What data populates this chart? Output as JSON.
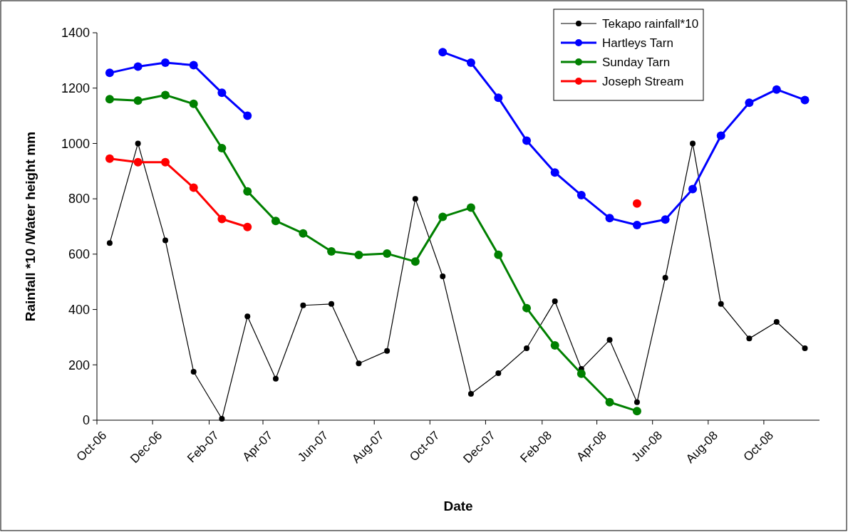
{
  "chart_data": {
    "type": "line",
    "xlabel": "Date",
    "ylabel": "Rainfall *10 /Water height mm",
    "x": [
      "2006-10-15",
      "2006-11-15",
      "2006-12-15",
      "2007-01-15",
      "2007-02-15",
      "2007-03-15",
      "2007-04-15",
      "2007-05-15",
      "2007-06-15",
      "2007-07-15",
      "2007-08-15",
      "2007-09-15",
      "2007-10-15",
      "2007-11-15",
      "2007-12-15",
      "2008-01-15",
      "2008-02-15",
      "2008-03-15",
      "2008-04-15",
      "2008-05-15",
      "2008-06-15",
      "2008-07-15",
      "2008-08-15",
      "2008-09-15",
      "2008-10-15",
      "2008-11-15"
    ],
    "series": [
      {
        "name": "Tekapo rainfall*10",
        "color": "#000000",
        "values": [
          640,
          1000,
          650,
          175,
          5,
          375,
          150,
          415,
          420,
          205,
          250,
          800,
          520,
          95,
          170,
          260,
          430,
          185,
          290,
          65,
          515,
          1000,
          420,
          295,
          355,
          260
        ]
      },
      {
        "name": "Hartleys Tarn",
        "color": "#0000ff",
        "values": [
          1255,
          1278,
          1292,
          1283,
          1183,
          1100,
          null,
          null,
          null,
          null,
          null,
          null,
          1330,
          1292,
          1165,
          1010,
          895,
          813,
          730,
          705,
          725,
          835,
          1028,
          1147,
          1195,
          1157
        ]
      },
      {
        "name": "Sunday Tarn",
        "color": "#008000",
        "values": [
          1160,
          1155,
          1175,
          1143,
          983,
          827,
          720,
          675,
          610,
          597,
          602,
          573,
          735,
          768,
          598,
          405,
          270,
          168,
          65,
          33,
          null,
          null,
          null,
          null,
          null,
          null
        ]
      },
      {
        "name": "Joseph Stream",
        "color": "#ff0000",
        "values": [
          945,
          932,
          932,
          840,
          727,
          698,
          null,
          null,
          null,
          null,
          null,
          null,
          null,
          null,
          null,
          null,
          null,
          null,
          null,
          783,
          null,
          null,
          null,
          null,
          null,
          null
        ]
      }
    ],
    "xlim": [
      "2006-10-01",
      "2008-12-01"
    ],
    "xticks": [
      {
        "value": "2006-10-01",
        "label": "Oct-06"
      },
      {
        "value": "2006-12-01",
        "label": "Dec-06"
      },
      {
        "value": "2007-02-01",
        "label": "Feb-07"
      },
      {
        "value": "2007-04-01",
        "label": "Apr-07"
      },
      {
        "value": "2007-06-01",
        "label": "Jun-07"
      },
      {
        "value": "2007-08-01",
        "label": "Aug-07"
      },
      {
        "value": "2007-10-01",
        "label": "Oct-07"
      },
      {
        "value": "2007-12-01",
        "label": "Dec-07"
      },
      {
        "value": "2008-02-01",
        "label": "Feb-08"
      },
      {
        "value": "2008-04-01",
        "label": "Apr-08"
      },
      {
        "value": "2008-06-01",
        "label": "Jun-08"
      },
      {
        "value": "2008-08-01",
        "label": "Aug-08"
      },
      {
        "value": "2008-10-01",
        "label": "Oct-08"
      }
    ],
    "ylim": [
      0,
      1400
    ],
    "yticks": [
      0,
      200,
      400,
      600,
      800,
      1000,
      1200,
      1400
    ],
    "grid": false,
    "legend": "top right",
    "marker": "circle",
    "line_style": "solid"
  }
}
